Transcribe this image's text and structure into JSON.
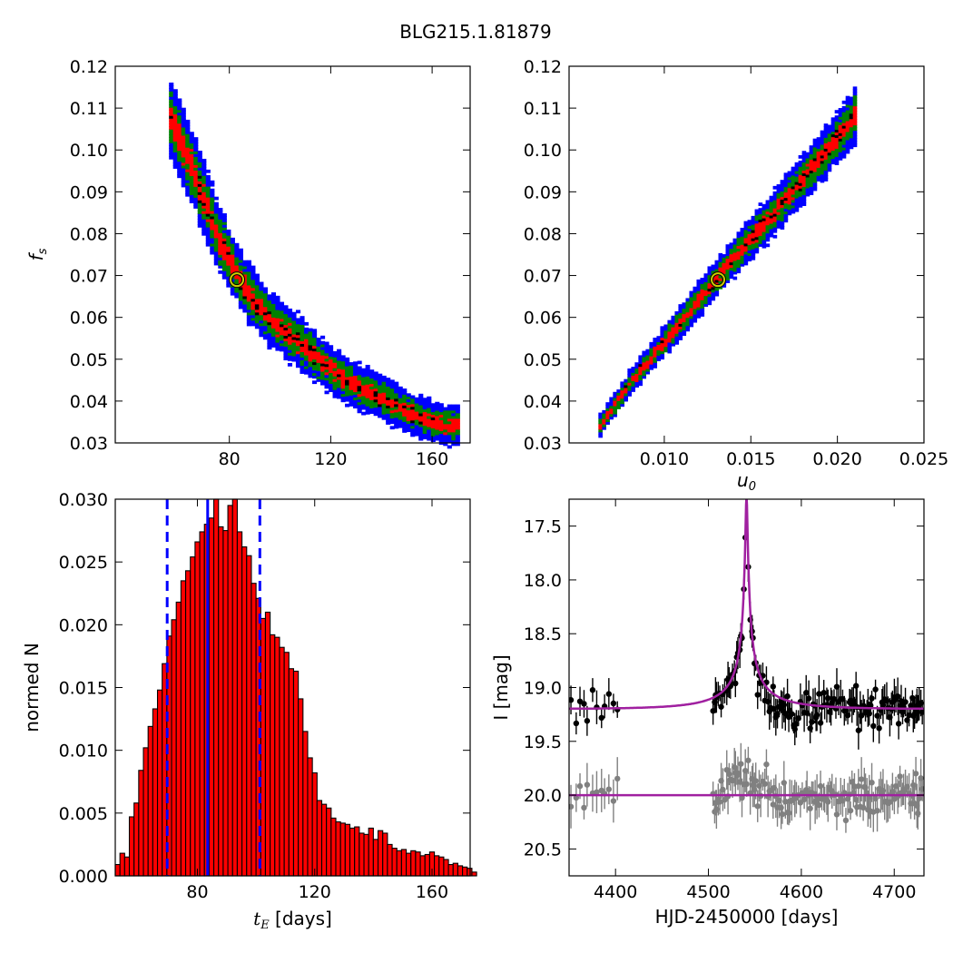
{
  "suptitle": "BLG215.1.81879",
  "chart_data": [
    {
      "type": "heatmap",
      "panel": "top-left",
      "xlabel": "",
      "ylabel": "f_s",
      "xlim": [
        35,
        175
      ],
      "ylim": [
        0.03,
        0.12
      ],
      "xticks": [
        "80",
        "120",
        "160"
      ],
      "yticks": [
        "0.03",
        "0.04",
        "0.05",
        "0.06",
        "0.07",
        "0.08",
        "0.09",
        "0.10",
        "0.11",
        "0.12"
      ],
      "band_centerline": {
        "x": [
          57,
          65,
          75,
          85,
          95,
          105,
          115,
          125,
          135,
          145,
          155,
          165,
          170
        ],
        "y": [
          0.107,
          0.096,
          0.08,
          0.068,
          0.06,
          0.055,
          0.05,
          0.045,
          0.042,
          0.039,
          0.036,
          0.034,
          0.034
        ]
      },
      "levels": [
        {
          "name": "blue",
          "color": "#0000ff"
        },
        {
          "name": "green",
          "color": "#008000"
        },
        {
          "name": "red",
          "color": "#ff0000"
        },
        {
          "name": "black",
          "color": "#000000"
        }
      ],
      "best_fit": {
        "x": 83,
        "y": 0.069,
        "color": "#cccc00"
      }
    },
    {
      "type": "heatmap",
      "panel": "top-right",
      "xlabel": "u_0",
      "ylabel": "",
      "xlim": [
        0.0045,
        0.025
      ],
      "ylim": [
        0.03,
        0.12
      ],
      "xticks": [
        "0.010",
        "0.015",
        "0.020",
        "0.025"
      ],
      "yticks": [
        "0.03",
        "0.04",
        "0.05",
        "0.06",
        "0.07",
        "0.08",
        "0.09",
        "0.10",
        "0.11",
        "0.12"
      ],
      "band_centerline": {
        "x": [
          0.0063,
          0.008,
          0.01,
          0.012,
          0.013,
          0.014,
          0.016,
          0.018,
          0.0195,
          0.021
        ],
        "y": [
          0.034,
          0.044,
          0.054,
          0.064,
          0.069,
          0.074,
          0.083,
          0.093,
          0.1,
          0.108
        ]
      },
      "best_fit": {
        "x": 0.0131,
        "y": 0.069,
        "color": "#cccc00"
      }
    },
    {
      "type": "bar",
      "panel": "bottom-left",
      "xlabel": "t_E  [days]",
      "ylabel": "normed N",
      "xlim": [
        52,
        173
      ],
      "ylim": [
        0,
        0.03
      ],
      "xticks": [
        "80",
        "120",
        "160"
      ],
      "yticks": [
        "0.000",
        "0.005",
        "0.010",
        "0.015",
        "0.020",
        "0.025",
        "0.030"
      ],
      "bin_start": 52,
      "bin_width": 1.6,
      "values": [
        0.0009,
        0.0018,
        0.0015,
        0.0047,
        0.0058,
        0.0084,
        0.0102,
        0.0119,
        0.0133,
        0.0148,
        0.0169,
        0.0191,
        0.0204,
        0.0218,
        0.0235,
        0.0243,
        0.0254,
        0.0266,
        0.0274,
        0.028,
        0.0285,
        0.03,
        0.0278,
        0.0275,
        0.0295,
        0.03,
        0.0274,
        0.0262,
        0.0255,
        0.0233,
        0.0221,
        0.0205,
        0.021,
        0.0192,
        0.019,
        0.0182,
        0.0178,
        0.0165,
        0.0163,
        0.0141,
        0.0115,
        0.0094,
        0.0082,
        0.006,
        0.0057,
        0.0054,
        0.0046,
        0.0043,
        0.0042,
        0.0041,
        0.0038,
        0.0039,
        0.0034,
        0.0033,
        0.0038,
        0.0029,
        0.0036,
        0.0034,
        0.0025,
        0.0022,
        0.002,
        0.0021,
        0.0018,
        0.002,
        0.0019,
        0.0016,
        0.0017,
        0.0019,
        0.0016,
        0.0015,
        0.0013,
        0.0009,
        0.001,
        0.0008,
        0.0007,
        0.0006,
        0.0003
      ],
      "bar_color": "#ff0000",
      "median_line": {
        "x": 83.5,
        "color": "#0000ff",
        "style": "solid"
      },
      "interval_lines": {
        "x": [
          69.7,
          101.3
        ],
        "color": "#0000ff",
        "style": "dashed"
      }
    },
    {
      "type": "line",
      "panel": "bottom-right",
      "xlabel": "HJD-2450000 [days]",
      "ylabel": "I [mag]",
      "xlim": [
        4350,
        4732
      ],
      "ylim": [
        20.75,
        17.25
      ],
      "y_inverted": true,
      "xticks": [
        "4400",
        "4500",
        "4600",
        "4700"
      ],
      "yticks": [
        "17.5",
        "18.0",
        "18.5",
        "19.0",
        "19.5",
        "20.0",
        "20.5"
      ],
      "series": [
        {
          "color": "#000000",
          "kind": "points",
          "baseline": 19.2,
          "scatter": 0.14,
          "err": 0.12
        },
        {
          "color": "#808080",
          "kind": "points",
          "baseline": 20.0,
          "scatter": 0.14,
          "err": 0.14
        },
        {
          "color": "#a020a0",
          "kind": "model",
          "t0": 4541,
          "tE": 83.5,
          "u0": 0.0131,
          "fs": 0.069,
          "I0": 19.2
        },
        {
          "color": "#a020a0",
          "kind": "flat",
          "value": 20.0
        }
      ]
    }
  ]
}
